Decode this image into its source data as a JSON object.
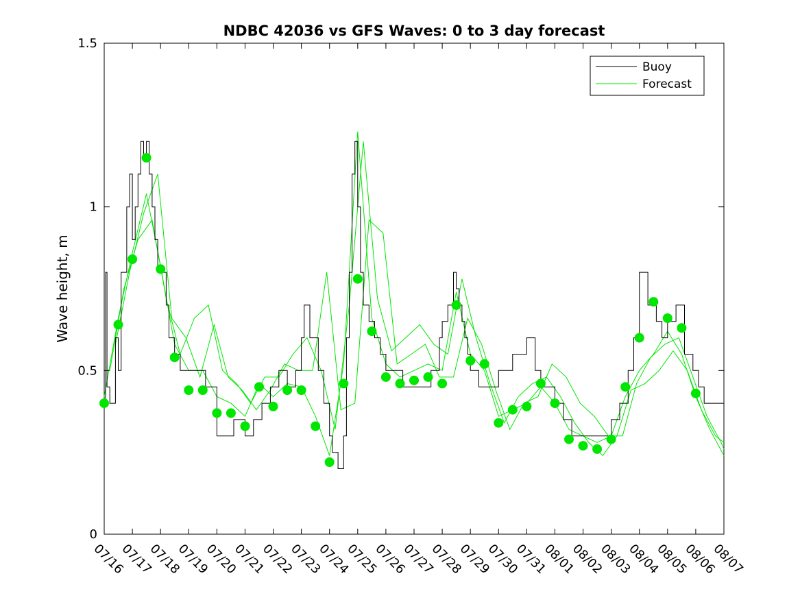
{
  "chart_data": {
    "type": "line",
    "title": "NDBC 42036 vs GFS Waves: 0 to 3 day forecast",
    "xlabel": "",
    "ylabel": "Wave height, m",
    "xlim": [
      "07/16",
      "08/07"
    ],
    "ylim": [
      0,
      1.5
    ],
    "x_ticks": [
      "07/16",
      "07/17",
      "07/18",
      "07/19",
      "07/20",
      "07/21",
      "07/22",
      "07/23",
      "07/24",
      "07/25",
      "07/26",
      "07/27",
      "07/28",
      "07/29",
      "07/30",
      "07/31",
      "08/01",
      "08/02",
      "08/03",
      "08/04",
      "08/05",
      "08/06",
      "08/07"
    ],
    "y_ticks": [
      "0",
      "0.5",
      "1",
      "1.5"
    ],
    "legend": {
      "placement": "top-right",
      "entries": [
        {
          "label": "Buoy",
          "color": "#000000"
        },
        {
          "label": "Forecast",
          "color": "#00e600"
        }
      ]
    },
    "series": [
      {
        "name": "Buoy",
        "color": "#000000",
        "style": "step",
        "x_day_offset": [
          0,
          0.05,
          0.1,
          0.2,
          0.4,
          0.5,
          0.6,
          0.7,
          0.8,
          0.9,
          1.0,
          1.1,
          1.2,
          1.3,
          1.4,
          1.5,
          1.6,
          1.7,
          1.8,
          1.9,
          2.0,
          2.2,
          2.3,
          2.5,
          2.7,
          3.0,
          3.3,
          3.6,
          4.0,
          4.3,
          4.6,
          5.0,
          5.3,
          5.6,
          5.9,
          6.2,
          6.5,
          6.8,
          7.0,
          7.1,
          7.3,
          7.6,
          7.8,
          8.0,
          8.1,
          8.3,
          8.5,
          8.6,
          8.7,
          8.8,
          8.9,
          9.0,
          9.1,
          9.2,
          9.4,
          9.6,
          9.8,
          10.0,
          10.3,
          10.6,
          11.0,
          11.3,
          11.6,
          11.9,
          12.0,
          12.2,
          12.4,
          12.5,
          12.6,
          12.7,
          12.8,
          12.9,
          13.0,
          13.1,
          13.3,
          13.5,
          13.8,
          14.0,
          14.2,
          14.5,
          14.8,
          15.0,
          15.3,
          15.5,
          15.8,
          16.0,
          16.3,
          16.6,
          17.0,
          17.3,
          17.6,
          18.0,
          18.3,
          18.6,
          18.8,
          19.0,
          19.3,
          19.6,
          19.8,
          20.0,
          20.3,
          20.6,
          20.9,
          21.1,
          21.3,
          21.6,
          22.0
        ],
        "y": [
          0.4,
          0.8,
          0.45,
          0.4,
          0.6,
          0.5,
          0.8,
          0.8,
          1.0,
          1.1,
          0.9,
          1.0,
          1.1,
          1.2,
          1.15,
          1.2,
          1.1,
          1.0,
          0.9,
          0.8,
          0.8,
          0.7,
          0.6,
          0.55,
          0.5,
          0.5,
          0.5,
          0.45,
          0.3,
          0.3,
          0.35,
          0.3,
          0.35,
          0.4,
          0.45,
          0.5,
          0.45,
          0.5,
          0.6,
          0.7,
          0.6,
          0.5,
          0.4,
          0.3,
          0.25,
          0.2,
          0.3,
          0.6,
          0.8,
          1.1,
          1.2,
          1.0,
          0.8,
          0.7,
          0.65,
          0.6,
          0.55,
          0.5,
          0.5,
          0.45,
          0.45,
          0.45,
          0.5,
          0.6,
          0.65,
          0.7,
          0.8,
          0.75,
          0.7,
          0.65,
          0.6,
          0.55,
          0.5,
          0.5,
          0.45,
          0.45,
          0.45,
          0.5,
          0.5,
          0.55,
          0.55,
          0.6,
          0.5,
          0.45,
          0.45,
          0.4,
          0.35,
          0.3,
          0.3,
          0.3,
          0.3,
          0.35,
          0.4,
          0.5,
          0.6,
          0.8,
          0.7,
          0.65,
          0.6,
          0.65,
          0.7,
          0.55,
          0.5,
          0.45,
          0.4,
          0.4,
          0.4
        ]
      },
      {
        "name": "Forecast",
        "color": "#00e600",
        "style": "line",
        "x_day_offset": [
          0,
          0.5,
          1.0,
          1.5,
          2.0,
          2.5,
          3.0,
          3.5,
          4.0,
          4.5,
          5.0,
          5.5,
          6.0,
          6.5,
          7.0,
          7.5,
          8.0,
          8.5,
          9.0,
          9.5,
          10.0,
          10.5,
          11.0,
          11.5,
          12.0,
          12.5,
          13.0,
          13.5,
          14.0,
          14.5,
          15.0,
          15.5,
          16.0,
          16.5,
          17.0,
          17.5,
          18.0,
          18.5,
          19.0,
          19.5,
          20.0,
          20.5,
          21.0,
          21.5,
          22.0
        ],
        "y": [
          0.42,
          0.66,
          0.86,
          1.04,
          0.82,
          0.58,
          0.5,
          0.5,
          0.42,
          0.4,
          0.36,
          0.46,
          0.42,
          0.46,
          0.45,
          0.36,
          0.24,
          0.52,
          1.23,
          0.66,
          0.52,
          0.48,
          0.5,
          0.52,
          0.5,
          0.74,
          0.55,
          0.5,
          0.36,
          0.38,
          0.4,
          0.45,
          0.4,
          0.32,
          0.3,
          0.28,
          0.3,
          0.42,
          0.5,
          0.55,
          0.62,
          0.55,
          0.42,
          0.32,
          0.24
        ]
      },
      {
        "name": "Forecast",
        "color": "#00e600",
        "style": "line",
        "x_day_offset": [
          0.2,
          0.7,
          1.2,
          1.7,
          2.2,
          2.7,
          3.2,
          3.7,
          4.2,
          4.7,
          5.2,
          5.7,
          6.2,
          6.7,
          7.2,
          7.7,
          8.2,
          8.7,
          9.2,
          9.7,
          10.2,
          10.7,
          11.2,
          11.7,
          12.2,
          12.7,
          13.2,
          13.7,
          14.2,
          14.7,
          15.2,
          15.7,
          16.2,
          16.7,
          17.2,
          17.7,
          18.2,
          18.7,
          19.2,
          19.7,
          20.2,
          20.7,
          21.2,
          21.7,
          22.0
        ],
        "y": [
          0.5,
          0.75,
          0.9,
          0.96,
          0.72,
          0.55,
          0.66,
          0.7,
          0.5,
          0.46,
          0.4,
          0.48,
          0.48,
          0.55,
          0.6,
          0.5,
          0.32,
          0.7,
          1.2,
          0.72,
          0.56,
          0.6,
          0.64,
          0.58,
          0.55,
          0.78,
          0.6,
          0.46,
          0.34,
          0.42,
          0.46,
          0.48,
          0.42,
          0.34,
          0.28,
          0.24,
          0.3,
          0.44,
          0.46,
          0.5,
          0.56,
          0.5,
          0.38,
          0.3,
          0.28
        ]
      },
      {
        "name": "Forecast",
        "color": "#00e600",
        "style": "line",
        "x_day_offset": [
          0.4,
          0.9,
          1.4,
          1.9,
          2.4,
          2.9,
          3.4,
          3.9,
          4.4,
          4.9,
          5.4,
          5.9,
          6.4,
          6.9,
          7.4,
          7.9,
          8.4,
          8.9,
          9.4,
          9.9,
          10.4,
          10.9,
          11.4,
          11.9,
          12.4,
          12.9,
          13.4,
          13.9,
          14.4,
          14.9,
          15.4,
          15.9,
          16.4,
          16.9,
          17.4,
          17.9,
          18.4,
          18.9,
          19.4,
          19.9,
          20.4,
          20.9,
          21.4,
          21.9,
          22.0
        ],
        "y": [
          0.58,
          0.8,
          0.98,
          1.1,
          0.66,
          0.6,
          0.48,
          0.64,
          0.48,
          0.44,
          0.38,
          0.44,
          0.52,
          0.5,
          0.5,
          0.8,
          0.38,
          0.4,
          0.96,
          0.92,
          0.52,
          0.55,
          0.58,
          0.48,
          0.48,
          0.66,
          0.58,
          0.44,
          0.32,
          0.4,
          0.42,
          0.52,
          0.48,
          0.4,
          0.36,
          0.3,
          0.3,
          0.46,
          0.54,
          0.58,
          0.6,
          0.48,
          0.36,
          0.28,
          0.26
        ]
      }
    ],
    "markers": {
      "name": "Forecast analysis points",
      "color": "#00e600",
      "x_day_offset": [
        0,
        0.5,
        1.0,
        1.5,
        2.0,
        2.5,
        3.0,
        3.5,
        4.0,
        4.5,
        5.0,
        5.5,
        6.0,
        6.5,
        7.0,
        7.5,
        8.0,
        8.5,
        9.0,
        9.5,
        10.0,
        10.5,
        11.0,
        11.5,
        12.0,
        12.5,
        13.0,
        13.5,
        14.0,
        14.5,
        15.0,
        15.5,
        16.0,
        16.5,
        17.0,
        17.5,
        18.0,
        18.5,
        19.0,
        19.5,
        20.0,
        20.5,
        21.0
      ],
      "y": [
        0.4,
        0.64,
        0.84,
        1.15,
        0.81,
        0.54,
        0.44,
        0.44,
        0.37,
        0.37,
        0.33,
        0.45,
        0.39,
        0.44,
        0.44,
        0.33,
        0.22,
        0.46,
        0.78,
        0.62,
        0.48,
        0.46,
        0.47,
        0.48,
        0.46,
        0.7,
        0.53,
        0.52,
        0.34,
        0.38,
        0.39,
        0.46,
        0.4,
        0.29,
        0.27,
        0.26,
        0.29,
        0.45,
        0.6,
        0.71,
        0.66,
        0.63,
        0.43
      ]
    }
  }
}
